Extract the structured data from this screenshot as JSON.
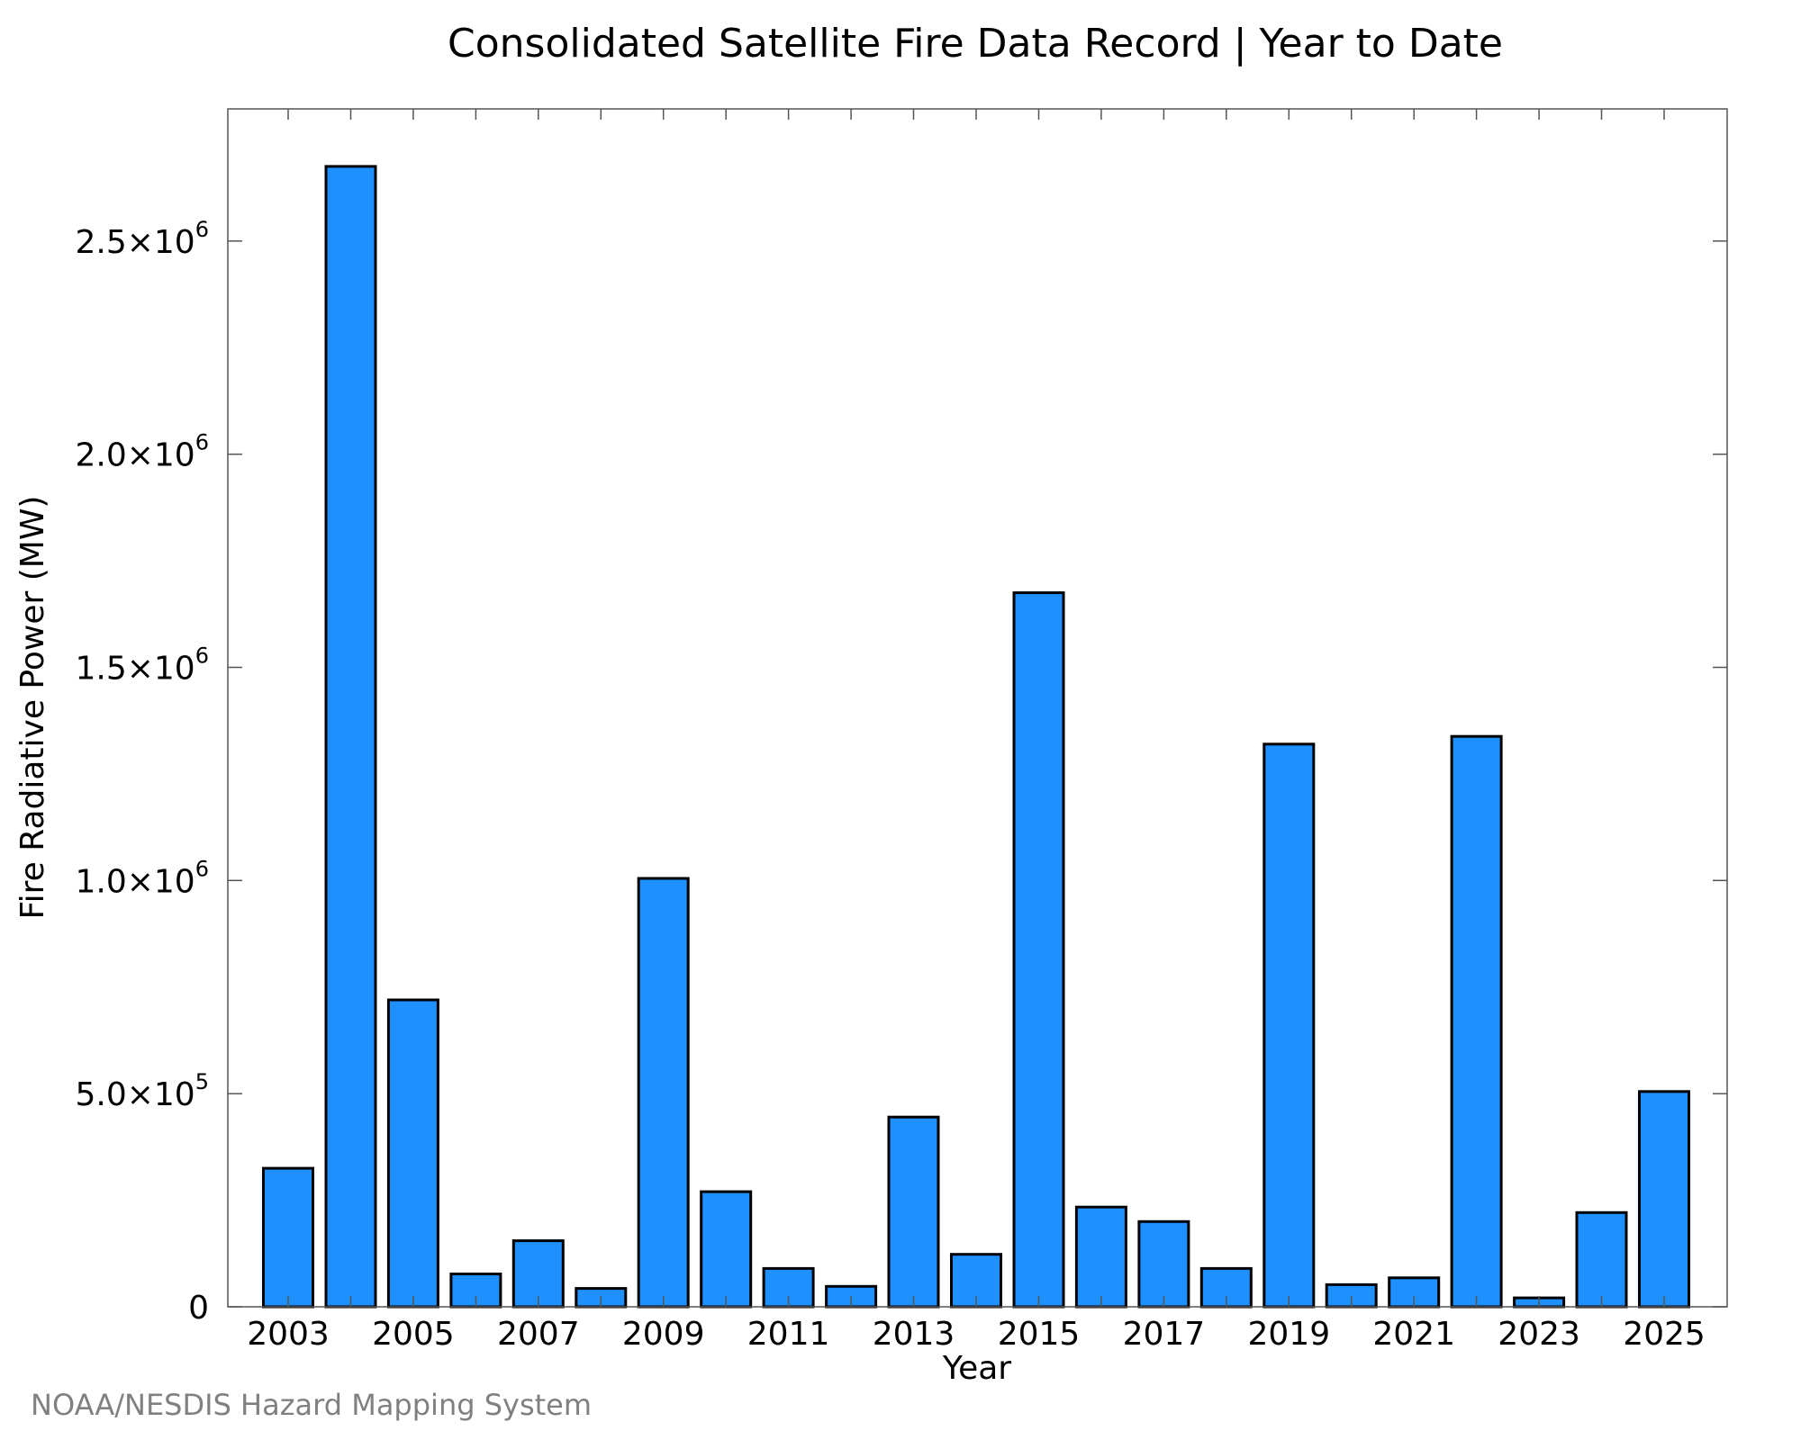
{
  "chart_data": {
    "type": "bar",
    "title": "Consolidated Satellite Fire Data Record | Year to Date",
    "xlabel": "Year",
    "ylabel": "Fire Radiative Power (MW)",
    "categories": [
      "2003",
      "2004",
      "2005",
      "2006",
      "2007",
      "2008",
      "2009",
      "2010",
      "2011",
      "2012",
      "2013",
      "2014",
      "2015",
      "2016",
      "2017",
      "2018",
      "2019",
      "2020",
      "2021",
      "2022",
      "2023",
      "2024",
      "2025"
    ],
    "values": [
      325000,
      2675000,
      720000,
      77000,
      155000,
      43000,
      1005000,
      270000,
      90000,
      48000,
      445000,
      123000,
      1675000,
      234000,
      200000,
      90000,
      1320000,
      52000,
      68000,
      1338000,
      21000,
      221000,
      505000
    ],
    "ylim": [
      0,
      2810000
    ],
    "xticks": [
      "2003",
      "2005",
      "2007",
      "2009",
      "2011",
      "2013",
      "2015",
      "2017",
      "2019",
      "2021",
      "2023",
      "2025"
    ],
    "yticks": [
      {
        "value": 0,
        "mantissa": "0",
        "exp": ""
      },
      {
        "value": 500000,
        "mantissa": "5.0×10",
        "exp": "5"
      },
      {
        "value": 1000000,
        "mantissa": "1.0×10",
        "exp": "6"
      },
      {
        "value": 1500000,
        "mantissa": "1.5×10",
        "exp": "6"
      },
      {
        "value": 2000000,
        "mantissa": "2.0×10",
        "exp": "6"
      },
      {
        "value": 2500000,
        "mantissa": "2.5×10",
        "exp": "6"
      }
    ],
    "bar_color": "#1e90ff",
    "grid": false,
    "legend": "none"
  },
  "credit": "NOAA/NESDIS Hazard Mapping System"
}
